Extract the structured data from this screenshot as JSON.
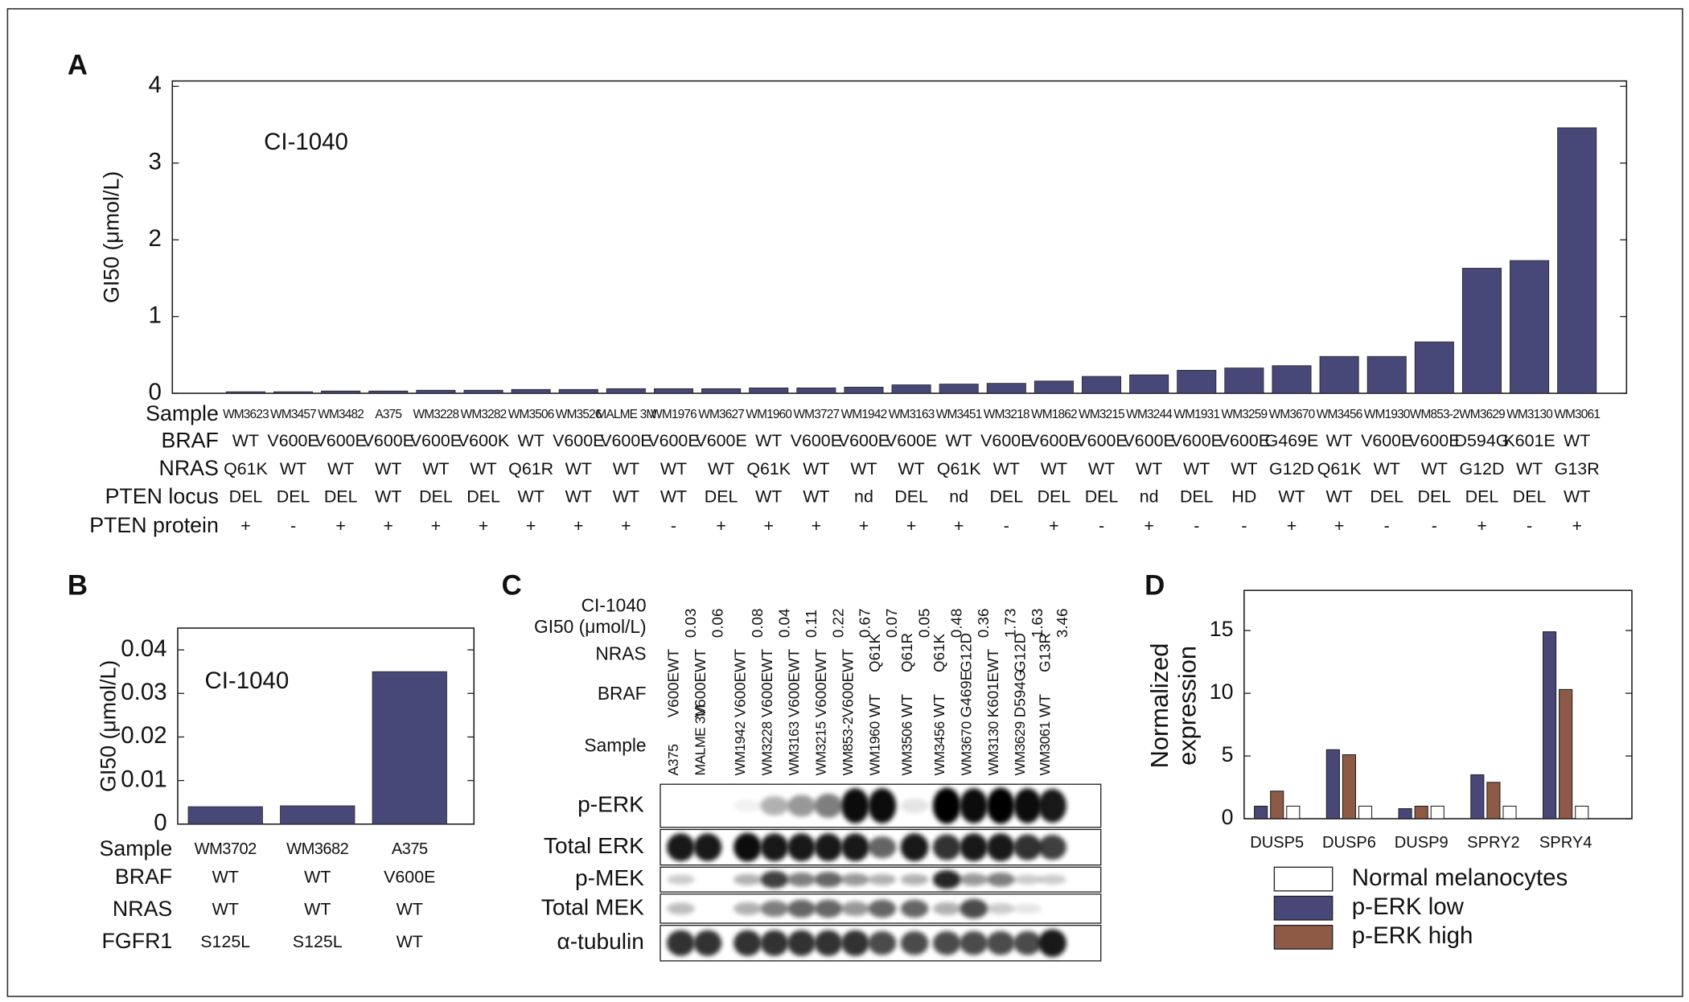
{
  "panel_labels": [
    "A",
    "B",
    "C",
    "D"
  ],
  "label_colors": {
    "V600E": "#e3202a",
    "V600K": "#e3202a",
    "Q61K": "#1e8a3c",
    "Q61R": "#1e8a3c",
    "G12D": "#1e8a3c",
    "G13R": "#1e8a3c",
    "DEL": "#6387cc",
    "HD": "#1f2a86",
    "G469E": "#e36f1e",
    "D594G": "#e36f1e",
    "K601E": "#e36f1e"
  },
  "chart_data": [
    {
      "type": "bar",
      "annotation": "CI-1040",
      "ylabel": "GI50 (μmol/L)",
      "categories": [
        "WM3623",
        "WM3457",
        "WM3482",
        "A375",
        "WM3228",
        "WM3282",
        "WM3506",
        "WM3526",
        "MALME 3M",
        "WM1976",
        "WM3627",
        "WM1960",
        "WM3727",
        "WM1942",
        "WM3163",
        "WM3451",
        "WM3218",
        "WM1862",
        "WM3215",
        "WM3244",
        "WM1931",
        "WM3259",
        "WM3670",
        "WM3456",
        "WM1930",
        "WM853-2",
        "WM3629",
        "WM3130",
        "WM3061"
      ],
      "values": [
        0.02,
        0.02,
        0.03,
        0.03,
        0.04,
        0.04,
        0.05,
        0.05,
        0.06,
        0.06,
        0.06,
        0.07,
        0.07,
        0.08,
        0.11,
        0.12,
        0.13,
        0.16,
        0.22,
        0.24,
        0.3,
        0.33,
        0.36,
        0.48,
        0.48,
        0.67,
        1.63,
        1.73,
        3.46
      ],
      "color": "#484878",
      "ylim": [
        0,
        4.07
      ],
      "yticks": [
        0,
        1,
        2,
        3,
        4
      ],
      "table": {
        "sample_label": "Sample",
        "row_labels": [
          "BRAF",
          "NRAS",
          "PTEN locus",
          "PTEN protein"
        ],
        "rows": [
          [
            "WT",
            "V600E",
            "V600E",
            "V600E",
            "V600E",
            "V600K",
            "WT",
            "V600E",
            "V600E",
            "V600E",
            "V600E",
            "WT",
            "V600E",
            "V600E",
            "V600E",
            "WT",
            "V600E",
            "V600E",
            "V600E",
            "V600E",
            "V600E",
            "V600E",
            "G469E",
            "WT",
            "V600E",
            "V600E",
            "D594G",
            "K601E",
            "WT"
          ],
          [
            "Q61K",
            "WT",
            "WT",
            "WT",
            "WT",
            "WT",
            "Q61R",
            "WT",
            "WT",
            "WT",
            "WT",
            "Q61K",
            "WT",
            "WT",
            "WT",
            "Q61K",
            "WT",
            "WT",
            "WT",
            "WT",
            "WT",
            "WT",
            "G12D",
            "Q61K",
            "WT",
            "WT",
            "G12D",
            "WT",
            "G13R"
          ],
          [
            "DEL",
            "DEL",
            "DEL",
            "WT",
            "DEL",
            "DEL",
            "WT",
            "WT",
            "WT",
            "WT",
            "DEL",
            "WT",
            "WT",
            "nd",
            "DEL",
            "nd",
            "DEL",
            "DEL",
            "DEL",
            "nd",
            "DEL",
            "HD",
            "WT",
            "WT",
            "DEL",
            "DEL",
            "DEL",
            "DEL",
            "WT"
          ],
          [
            "+",
            "-",
            "+",
            "+",
            "+",
            "+",
            "+",
            "+",
            "+",
            "-",
            "+",
            "+",
            "+",
            "+",
            "+",
            "+",
            "-",
            "+",
            "-",
            "+",
            "-",
            "-",
            "+",
            "+",
            "-",
            "-",
            "+",
            "-",
            "+"
          ]
        ]
      }
    },
    {
      "type": "bar",
      "annotation": "CI-1040",
      "ylabel": "GI50 (μmol/L)",
      "categories": [
        "WM3702",
        "WM3682",
        "A375"
      ],
      "values": [
        0.004,
        0.0042,
        0.035
      ],
      "color": "#484878",
      "ylim": [
        0,
        0.045
      ],
      "yticks": [
        0,
        0.01,
        0.02,
        0.03,
        0.04
      ],
      "table": {
        "sample_label": "Sample",
        "row_labels": [
          "BRAF",
          "NRAS",
          "FGFR1"
        ],
        "rows": [
          [
            "WT",
            "WT",
            "V600E"
          ],
          [
            "WT",
            "WT",
            "WT"
          ],
          [
            "S125L",
            "S125L",
            "WT"
          ]
        ]
      }
    },
    {
      "type": "grouped-bar",
      "ylabel": [
        "Normalized",
        "expression"
      ],
      "categories": [
        "DUSP5",
        "DUSP6",
        "DUSP9",
        "SPRY2",
        "SPRY4"
      ],
      "series": [
        {
          "name": "Normal melanocytes",
          "color": "#ffffff",
          "values": [
            1,
            1,
            1,
            1,
            1
          ]
        },
        {
          "name": "p-ERK low",
          "color": "#484878",
          "values": [
            1,
            5.5,
            0.8,
            3.5,
            14.9
          ]
        },
        {
          "name": "p-ERK high",
          "color": "#8d5a45",
          "values": [
            2.2,
            5.1,
            1.0,
            2.9,
            10.3
          ]
        }
      ],
      "ylim": [
        0,
        18.2
      ],
      "yticks": [
        0,
        5,
        10,
        15
      ],
      "legend": "bottom"
    }
  ],
  "blot": {
    "treatment": "CI-1040",
    "row_labels": [
      "GI50 (μmol/L)",
      "NRAS",
      "BRAF",
      "Sample"
    ],
    "lanes": [
      {
        "sample": "A375",
        "gi50": "0.03",
        "nras": "WT",
        "braf": "V600E"
      },
      {
        "sample": "MALME 3M",
        "gi50": "0.06",
        "nras": "WT",
        "braf": "V600E"
      },
      {
        "sample": "WM1942",
        "gi50": "0.08",
        "nras": "WT",
        "braf": "V600E"
      },
      {
        "sample": "WM3228",
        "gi50": "0.04",
        "nras": "WT",
        "braf": "V600E"
      },
      {
        "sample": "WM3163",
        "gi50": "0.11",
        "nras": "WT",
        "braf": "V600E"
      },
      {
        "sample": "WM3215",
        "gi50": "0.22",
        "nras": "WT",
        "braf": "V600E"
      },
      {
        "sample": "WM853-2",
        "gi50": "0.67",
        "nras": "WT",
        "braf": "V600E"
      },
      {
        "sample": "WM1960",
        "gi50": "0.07",
        "nras": "Q61K",
        "braf": "WT"
      },
      {
        "sample": "WM3506",
        "gi50": "0.05",
        "nras": "Q61R",
        "braf": "WT"
      },
      {
        "sample": "WM3456",
        "gi50": "0.48",
        "nras": "Q61K",
        "braf": "WT"
      },
      {
        "sample": "WM3670",
        "gi50": "0.36",
        "nras": "G12D",
        "braf": "G469E"
      },
      {
        "sample": "WM3130",
        "gi50": "1.73",
        "nras": "WT",
        "braf": "K601E"
      },
      {
        "sample": "WM3629",
        "gi50": "1.63",
        "nras": "G12D",
        "braf": "D594G"
      },
      {
        "sample": "WM3061",
        "gi50": "3.46",
        "nras": "G13R",
        "braf": "WT"
      }
    ],
    "bands": [
      "p-ERK",
      "Total ERK",
      "p-MEK",
      "Total MEK",
      "α-tubulin"
    ]
  }
}
